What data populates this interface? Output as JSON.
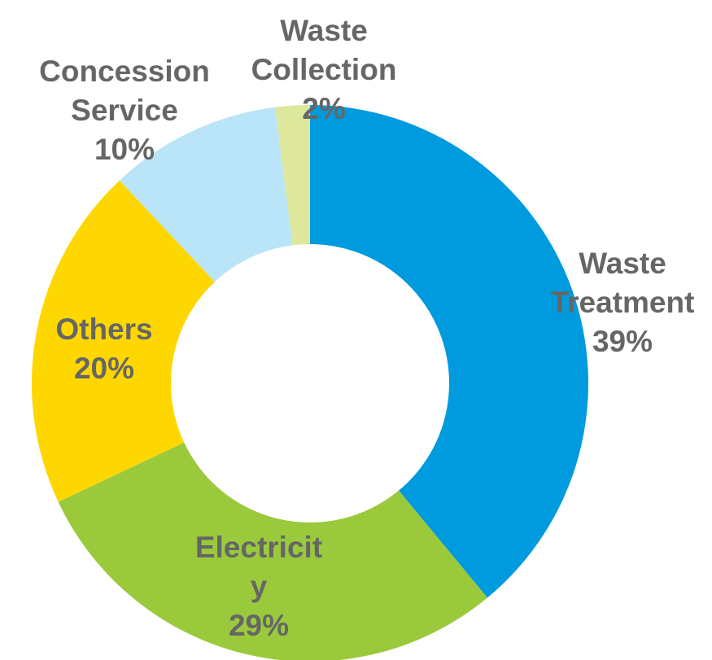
{
  "chart_data": {
    "type": "pie",
    "variant": "donut",
    "title": "",
    "start": "12 o'clock",
    "direction": "clockwise",
    "slices": [
      {
        "name": "Waste Treatment",
        "label_lines": [
          "Waste",
          "Treatment"
        ],
        "value": 39,
        "value_label": "39%",
        "color": "#009ADE"
      },
      {
        "name": "Electricity",
        "label_lines": [
          "Electricit",
          "y"
        ],
        "value": 29,
        "value_label": "29%",
        "color": "#9ACA3C"
      },
      {
        "name": "Others",
        "label_lines": [
          "Others"
        ],
        "value": 20,
        "value_label": "20%",
        "color": "#FFD700"
      },
      {
        "name": "Concession Service",
        "label_lines": [
          "Concession",
          "Service"
        ],
        "value": 10,
        "value_label": "10%",
        "color": "#BAE4F8"
      },
      {
        "name": "Waste Collection",
        "label_lines": [
          "Waste",
          "Collection"
        ],
        "value": 2,
        "value_label": "2%",
        "color": "#DDE89C"
      }
    ],
    "label_color": "#666666",
    "legend": "none"
  }
}
